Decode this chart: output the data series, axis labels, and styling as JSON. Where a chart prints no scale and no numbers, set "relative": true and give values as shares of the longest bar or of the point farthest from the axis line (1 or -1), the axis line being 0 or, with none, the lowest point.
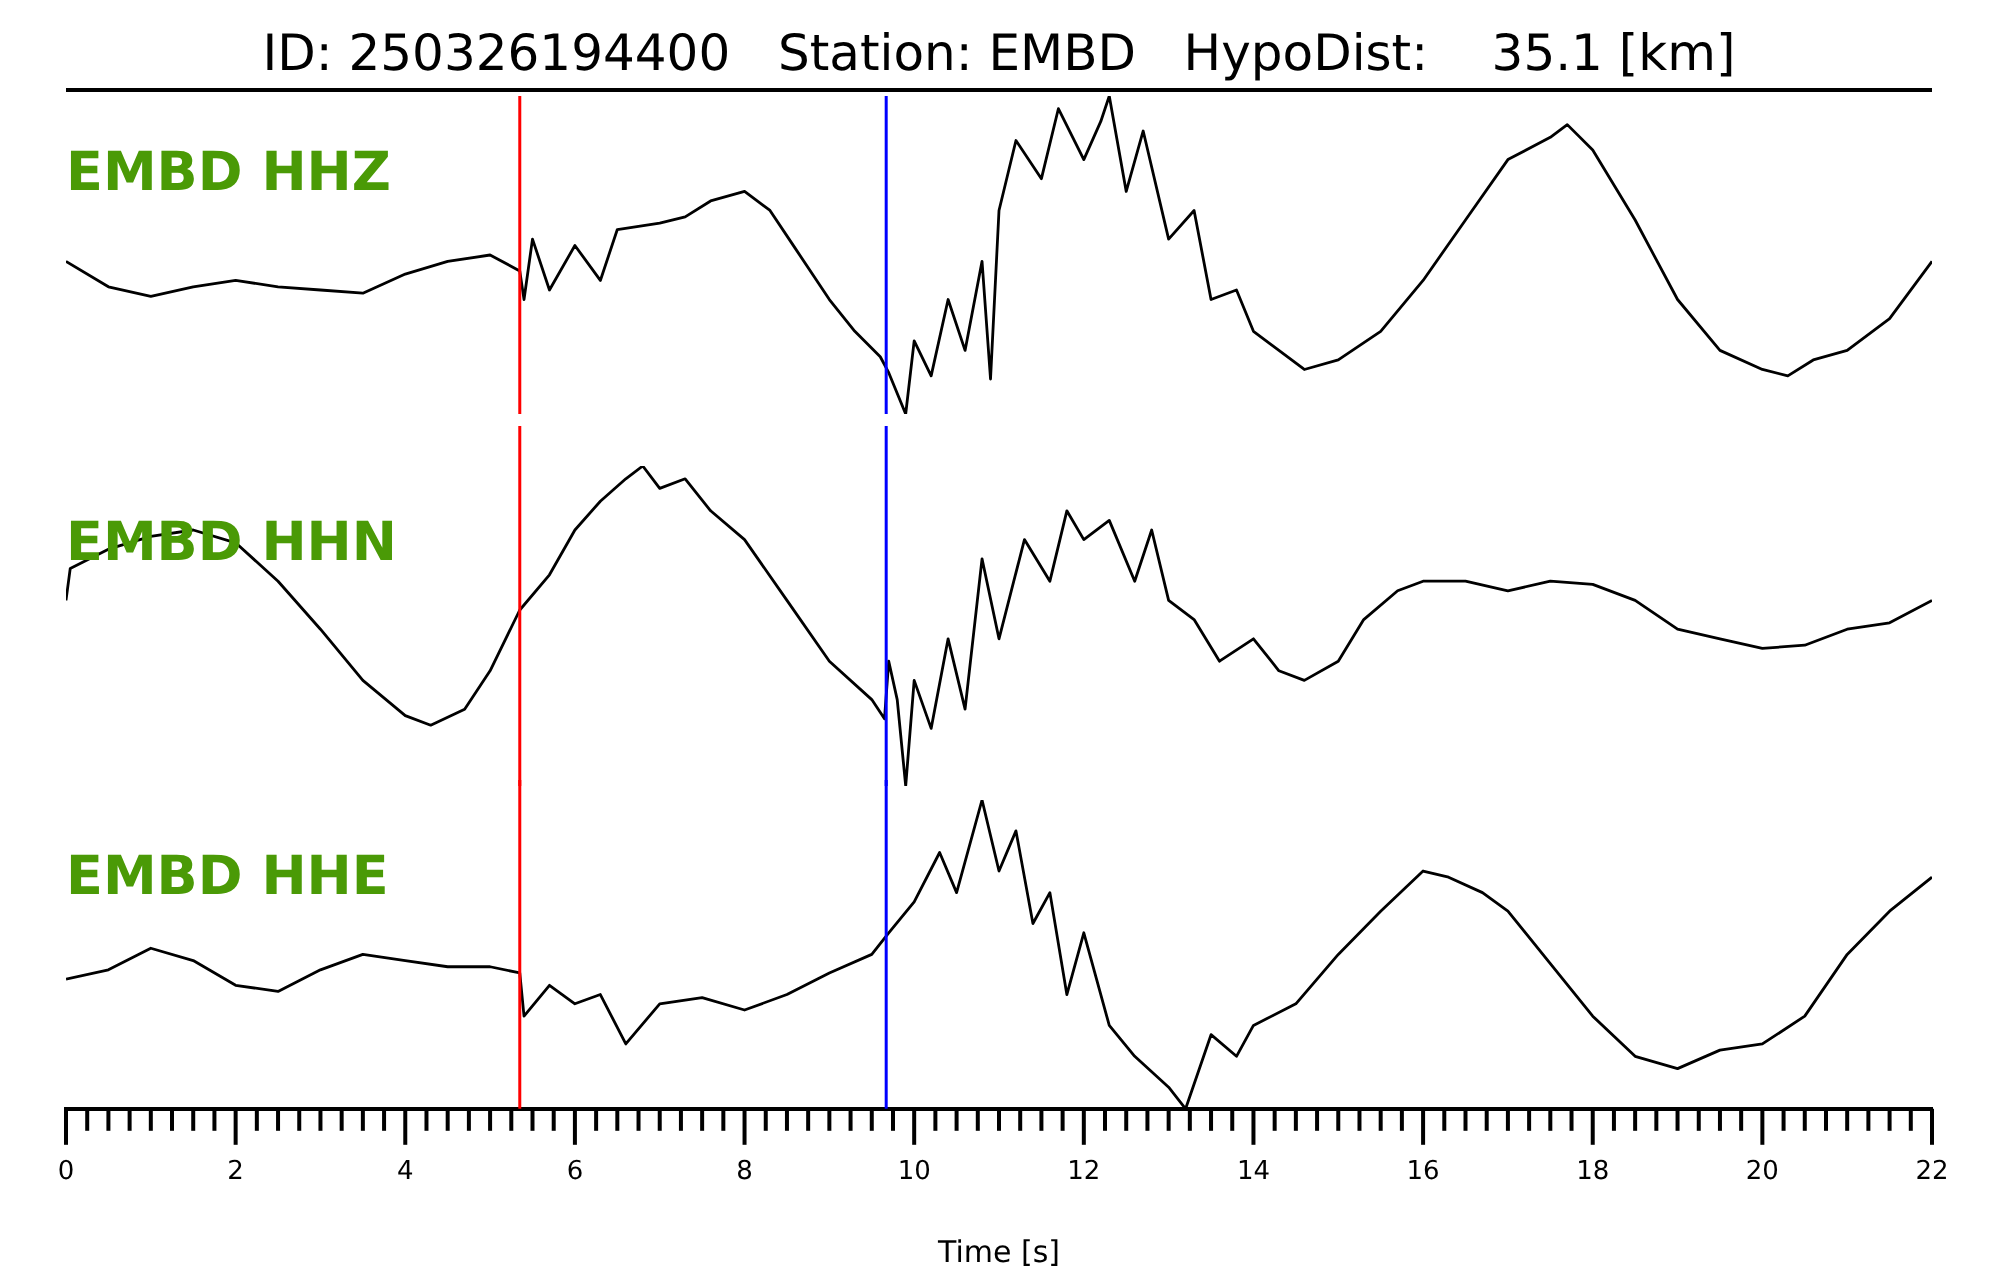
{
  "chart_data": [
    {
      "type": "line",
      "title": "ID: 250326194400   Station: EMBD   HypoDist:    35.1 [km]",
      "relative": true,
      "xlim": [
        0,
        22
      ],
      "tick_labels": false,
      "x": [
        0,
        0.5,
        1,
        1.5,
        2,
        2.5,
        3,
        3.5,
        4,
        4.5,
        5,
        5.35,
        5.4,
        5.5,
        5.7,
        6,
        6.3,
        6.5,
        7,
        7.3,
        7.6,
        8,
        8.3,
        8.6,
        9,
        9.3,
        9.6,
        9.7,
        9.9,
        10,
        10.2,
        10.4,
        10.6,
        10.8,
        10.9,
        11,
        11.2,
        11.5,
        11.7,
        12,
        12.2,
        12.3,
        12.5,
        12.7,
        13,
        13.3,
        13.5,
        13.8,
        14,
        14.3,
        14.6,
        15,
        15.5,
        16,
        16.5,
        17,
        17.5,
        17.7,
        18,
        18.5,
        19,
        19.5,
        20,
        20.3,
        20.6,
        21,
        21.5,
        22
      ],
      "series": [
        {
          "name": "EMBD HHZ",
          "color": "#000000",
          "values": [
            0.48,
            0.4,
            0.37,
            0.4,
            0.42,
            0.4,
            0.39,
            0.38,
            0.44,
            0.48,
            0.5,
            0.45,
            0.36,
            0.55,
            0.39,
            0.53,
            0.42,
            0.58,
            0.6,
            0.62,
            0.67,
            0.7,
            0.64,
            0.52,
            0.36,
            0.26,
            0.18,
            0.13,
            0,
            0.23,
            0.12,
            0.36,
            0.2,
            0.48,
            0.11,
            0.64,
            0.86,
            0.74,
            0.96,
            0.8,
            0.92,
            1,
            0.7,
            0.89,
            0.55,
            0.64,
            0.36,
            0.39,
            0.26,
            0.2,
            0.14,
            0.17,
            0.26,
            0.42,
            0.61,
            0.8,
            0.87,
            0.91,
            0.83,
            0.61,
            0.36,
            0.2,
            0.14,
            0.12,
            0.17,
            0.2,
            0.3,
            0.48
          ]
        }
      ],
      "ref_lines": [
        {
          "axis": "x",
          "value": 5.35,
          "color": "#ff0000"
        },
        {
          "axis": "x",
          "value": 9.67,
          "color": "#0000ff"
        }
      ]
    },
    {
      "type": "line",
      "relative": true,
      "xlim": [
        0,
        22
      ],
      "tick_labels": false,
      "x": [
        0,
        0.05,
        0.5,
        1,
        1.5,
        2,
        2.5,
        3,
        3.5,
        4,
        4.3,
        4.7,
        5,
        5.35,
        5.7,
        6,
        6.3,
        6.6,
        6.8,
        7,
        7.3,
        7.6,
        8,
        8.5,
        9,
        9.5,
        9.65,
        9.7,
        9.8,
        9.9,
        10,
        10.2,
        10.4,
        10.6,
        10.8,
        11,
        11.3,
        11.6,
        11.8,
        12,
        12.3,
        12.6,
        12.8,
        13,
        13.3,
        13.6,
        14,
        14.3,
        14.6,
        15,
        15.3,
        15.7,
        16,
        16.5,
        17,
        17.5,
        18,
        18.5,
        19,
        19.5,
        20,
        20.5,
        21,
        21.5,
        22
      ],
      "series": [
        {
          "name": "EMBD HHN",
          "color": "#000000",
          "values": [
            0.58,
            0.68,
            0.74,
            0.78,
            0.8,
            0.76,
            0.64,
            0.49,
            0.33,
            0.22,
            0.19,
            0.24,
            0.36,
            0.55,
            0.66,
            0.8,
            0.89,
            0.96,
            1,
            0.93,
            0.96,
            0.86,
            0.77,
            0.58,
            0.39,
            0.27,
            0.21,
            0.39,
            0.27,
            0,
            0.33,
            0.18,
            0.46,
            0.24,
            0.71,
            0.46,
            0.77,
            0.64,
            0.86,
            0.77,
            0.83,
            0.64,
            0.8,
            0.58,
            0.52,
            0.39,
            0.46,
            0.36,
            0.33,
            0.39,
            0.52,
            0.61,
            0.64,
            0.64,
            0.61,
            0.64,
            0.63,
            0.58,
            0.49,
            0.46,
            0.43,
            0.44,
            0.49,
            0.51,
            0.58
          ]
        }
      ],
      "ref_lines": [
        {
          "axis": "x",
          "value": 5.35,
          "color": "#ff0000"
        },
        {
          "axis": "x",
          "value": 9.67,
          "color": "#0000ff"
        }
      ]
    },
    {
      "type": "line",
      "relative": true,
      "xlim": [
        0,
        22
      ],
      "tick_labels": "x",
      "xlabel": "Time [s]",
      "xticks": [
        0,
        {
          "value": 0.25,
          "label": null
        },
        {
          "value": 0.5,
          "label": null
        },
        {
          "value": 0.75,
          "label": null
        },
        {
          "value": 1,
          "label": null
        },
        {
          "value": 1.25,
          "label": null
        },
        {
          "value": 1.5,
          "label": null
        },
        {
          "value": 1.75,
          "label": null
        },
        2,
        {
          "value": 2.25,
          "label": null
        },
        {
          "value": 2.5,
          "label": null
        },
        {
          "value": 2.75,
          "label": null
        },
        {
          "value": 3,
          "label": null
        },
        {
          "value": 3.25,
          "label": null
        },
        {
          "value": 3.5,
          "label": null
        },
        {
          "value": 3.75,
          "label": null
        },
        4,
        {
          "value": 4.25,
          "label": null
        },
        {
          "value": 4.5,
          "label": null
        },
        {
          "value": 4.75,
          "label": null
        },
        {
          "value": 5,
          "label": null
        },
        {
          "value": 5.25,
          "label": null
        },
        {
          "value": 5.5,
          "label": null
        },
        {
          "value": 5.75,
          "label": null
        },
        6,
        {
          "value": 6.25,
          "label": null
        },
        {
          "value": 6.5,
          "label": null
        },
        {
          "value": 6.75,
          "label": null
        },
        {
          "value": 7,
          "label": null
        },
        {
          "value": 7.25,
          "label": null
        },
        {
          "value": 7.5,
          "label": null
        },
        {
          "value": 7.75,
          "label": null
        },
        8,
        {
          "value": 8.25,
          "label": null
        },
        {
          "value": 8.5,
          "label": null
        },
        {
          "value": 8.75,
          "label": null
        },
        {
          "value": 9,
          "label": null
        },
        {
          "value": 9.25,
          "label": null
        },
        {
          "value": 9.5,
          "label": null
        },
        {
          "value": 9.75,
          "label": null
        },
        10,
        {
          "value": 10.25,
          "label": null
        },
        {
          "value": 10.5,
          "label": null
        },
        {
          "value": 10.75,
          "label": null
        },
        {
          "value": 11,
          "label": null
        },
        {
          "value": 11.25,
          "label": null
        },
        {
          "value": 11.5,
          "label": null
        },
        {
          "value": 11.75,
          "label": null
        },
        12,
        {
          "value": 12.25,
          "label": null
        },
        {
          "value": 12.5,
          "label": null
        },
        {
          "value": 12.75,
          "label": null
        },
        {
          "value": 13,
          "label": null
        },
        {
          "value": 13.25,
          "label": null
        },
        {
          "value": 13.5,
          "label": null
        },
        {
          "value": 13.75,
          "label": null
        },
        14,
        {
          "value": 14.25,
          "label": null
        },
        {
          "value": 14.5,
          "label": null
        },
        {
          "value": 14.75,
          "label": null
        },
        {
          "value": 15,
          "label": null
        },
        {
          "value": 15.25,
          "label": null
        },
        {
          "value": 15.5,
          "label": null
        },
        {
          "value": 15.75,
          "label": null
        },
        16,
        {
          "value": 16.25,
          "label": null
        },
        {
          "value": 16.5,
          "label": null
        },
        {
          "value": 16.75,
          "label": null
        },
        {
          "value": 17,
          "label": null
        },
        {
          "value": 17.25,
          "label": null
        },
        {
          "value": 17.5,
          "label": null
        },
        {
          "value": 17.75,
          "label": null
        },
        18,
        {
          "value": 18.25,
          "label": null
        },
        {
          "value": 18.5,
          "label": null
        },
        {
          "value": 18.75,
          "label": null
        },
        {
          "value": 19,
          "label": null
        },
        {
          "value": 19.25,
          "label": null
        },
        {
          "value": 19.5,
          "label": null
        },
        {
          "value": 19.75,
          "label": null
        },
        20,
        {
          "value": 20.25,
          "label": null
        },
        {
          "value": 20.5,
          "label": null
        },
        {
          "value": 20.75,
          "label": null
        },
        {
          "value": 21,
          "label": null
        },
        {
          "value": 21.25,
          "label": null
        },
        {
          "value": 21.5,
          "label": null
        },
        {
          "value": 21.75,
          "label": null
        },
        22
      ],
      "x": [
        0,
        0.5,
        1,
        1.5,
        2,
        2.5,
        3,
        3.5,
        4,
        4.5,
        5,
        5.35,
        5.4,
        5.7,
        6,
        6.3,
        6.6,
        7,
        7.5,
        8,
        8.5,
        9,
        9.5,
        9.7,
        10,
        10.3,
        10.5,
        10.8,
        11,
        11.2,
        11.4,
        11.6,
        11.8,
        12,
        12.3,
        12.6,
        13,
        13.2,
        13.5,
        13.8,
        14,
        14.5,
        15,
        15.5,
        16,
        16.3,
        16.7,
        17,
        17.5,
        18,
        18.5,
        19,
        19.5,
        20,
        20.5,
        21,
        21.5,
        22
      ],
      "series": [
        {
          "name": "EMBD HHE",
          "color": "#000000",
          "values": [
            0.42,
            0.45,
            0.52,
            0.48,
            0.4,
            0.38,
            0.45,
            0.5,
            0.48,
            0.46,
            0.46,
            0.44,
            0.3,
            0.4,
            0.34,
            0.37,
            0.21,
            0.34,
            0.36,
            0.32,
            0.37,
            0.44,
            0.5,
            0.57,
            0.67,
            0.83,
            0.7,
            1,
            0.77,
            0.9,
            0.6,
            0.7,
            0.37,
            0.57,
            0.27,
            0.17,
            0.07,
            0,
            0.24,
            0.17,
            0.27,
            0.34,
            0.5,
            0.64,
            0.77,
            0.75,
            0.7,
            0.64,
            0.47,
            0.3,
            0.17,
            0.13,
            0.19,
            0.21,
            0.3,
            0.5,
            0.64,
            0.75
          ]
        }
      ],
      "ref_lines": [
        {
          "axis": "x",
          "value": 5.35,
          "color": "#ff0000"
        },
        {
          "axis": "x",
          "value": 9.67,
          "color": "#0000ff"
        }
      ]
    }
  ]
}
